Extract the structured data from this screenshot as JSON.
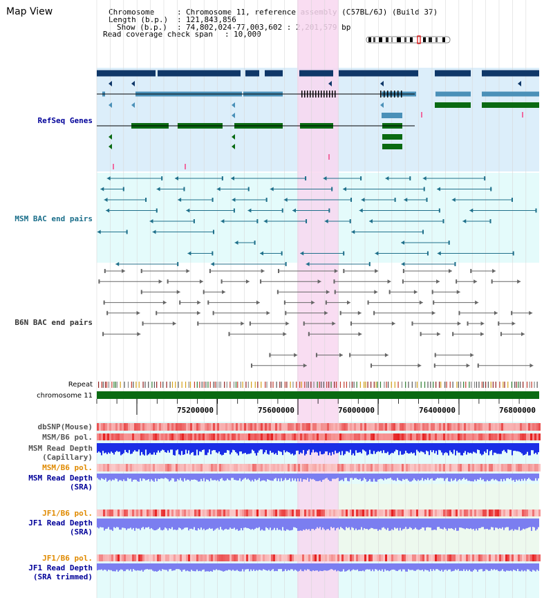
{
  "page_title": "Map View",
  "info": {
    "chromosome_key": "Chromosome",
    "chromosome_value": "Chromosome 11, reference assembly (C57BL/6J) (Build 37)",
    "length_key": "Length (b.p.)",
    "length_value": "121,843,856",
    "show_key": "Show (b.p.)",
    "show_value": "74,802,024-77,003,602 : 2,201,579 bp",
    "coverage_key": "Read coverage check span",
    "coverage_value": "10,000"
  },
  "tracks": {
    "refseq": "RefSeq Genes",
    "msm_bac": "MSM BAC end pairs",
    "b6n_bac": "B6N BAC end pairs",
    "repeat": "Repeat",
    "chromosome": "chromosome 11",
    "dbsnp": "dbSNP(Mouse)",
    "msm_b6_pol_1": "MSM/B6 pol.",
    "msm_depth_cap_1": "MSM Read Depth",
    "msm_depth_cap_2": "(Capillary)",
    "msm_b6_pol_2": "MSM/B6 pol.",
    "msm_depth_sra_1": "MSM Read Depth",
    "msm_depth_sra_2": "(SRA)",
    "jf1_b6_pol_1": "JF1/B6 pol.",
    "jf1_depth_sra_1": "JF1 Read Depth",
    "jf1_depth_sra_2": "(SRA)",
    "jf1_b6_pol_2": "JF1/B6 pol.",
    "jf1_depth_trim_1": "JF1 Read Depth",
    "jf1_depth_trim_2": "(SRA trimmed)"
  },
  "axis_ticks": [
    "75200000",
    "75600000",
    "76000000",
    "76400000",
    "76800000"
  ],
  "colors": {
    "refseq_bg": "#dceefa",
    "msm_bg": "#e4fbfb",
    "highlight": "#f8d7f0",
    "grid": "#d8d8d8",
    "dark_blue": "#0f3768",
    "mid_blue": "#4a90b8",
    "gene_green": "#0a6a12",
    "msm_line": "#1e6f8a",
    "b6n_line": "#666666",
    "label_navy": "#000099",
    "label_teal": "#1a6e8a",
    "label_orange": "#e08a00",
    "label_gray": "#333333",
    "depth_blue": "#1b2ee6",
    "depth_light": "#7b7ef0"
  }
}
